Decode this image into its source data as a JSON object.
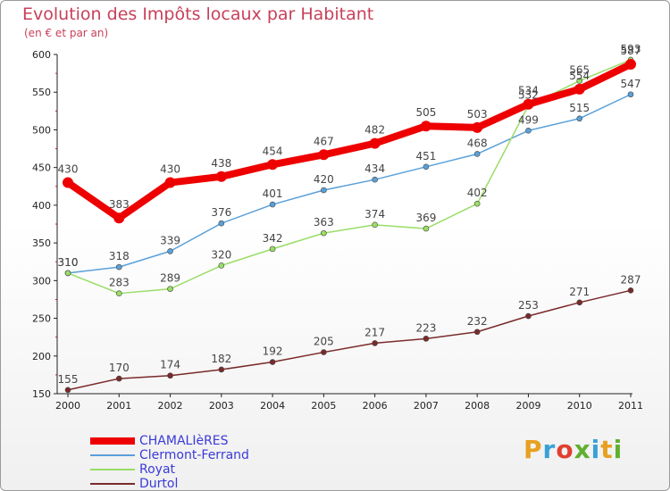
{
  "header": {
    "title": "Evolution des Impôts locaux par Habitant",
    "subtitle": "(en € et par an)"
  },
  "logo": {
    "text": "Proxiti",
    "colors": [
      "#e8a020",
      "#3aa0d8",
      "#e04030",
      "#60b030",
      "#3aa0d8",
      "#e8a020",
      "#60b030"
    ]
  },
  "chart_data": {
    "type": "line",
    "x": [
      "2000",
      "2001",
      "2002",
      "2003",
      "2004",
      "2005",
      "2006",
      "2007",
      "2008",
      "2009",
      "2010",
      "2011"
    ],
    "ylim": [
      150,
      600
    ],
    "yticks": [
      "150",
      "200",
      "250",
      "300",
      "350",
      "400",
      "450",
      "500",
      "550",
      "600"
    ],
    "grid": false,
    "legend_position": "bottom-left",
    "series": [
      {
        "name": "CHAMALIèRES",
        "color": "#ee0000",
        "width": 8,
        "values": [
          430,
          383,
          430,
          438,
          454,
          467,
          482,
          505,
          503,
          534,
          554,
          587
        ],
        "labels": [
          "430",
          "383",
          "430",
          "438",
          "454",
          "467",
          "482",
          "505",
          "503",
          "534",
          "554",
          "587"
        ]
      },
      {
        "name": "Clermont-Ferrand",
        "color": "#5aa0d8",
        "width": 1.5,
        "values": [
          310,
          318,
          339,
          376,
          401,
          420,
          434,
          451,
          468,
          499,
          515,
          547
        ],
        "labels": [
          "310",
          "318",
          "339",
          "376",
          "401",
          "420",
          "434",
          "451",
          "468",
          "499",
          "515",
          "547"
        ]
      },
      {
        "name": "Royat",
        "color": "#99dd66",
        "width": 1.5,
        "values": [
          310,
          283,
          289,
          320,
          342,
          363,
          374,
          369,
          402,
          532,
          565,
          593
        ],
        "labels": [
          "310",
          "283",
          "289",
          "320",
          "342",
          "363",
          "374",
          "369",
          "402",
          "532",
          "565",
          "593"
        ]
      },
      {
        "name": "Durtol",
        "color": "#7a2a2a",
        "width": 1.5,
        "values": [
          155,
          170,
          174,
          182,
          192,
          205,
          217,
          223,
          232,
          253,
          271,
          287
        ],
        "labels": [
          "155",
          "170",
          "174",
          "182",
          "192",
          "205",
          "217",
          "223",
          "232",
          "253",
          "271",
          "287"
        ]
      }
    ]
  }
}
